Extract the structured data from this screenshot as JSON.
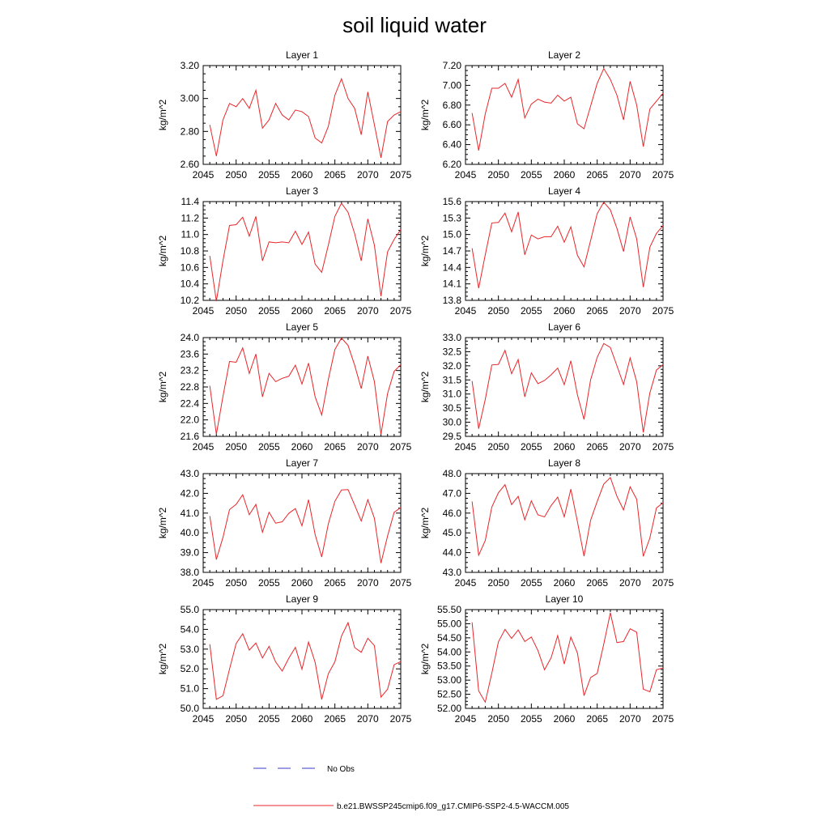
{
  "figure": {
    "title": "soil liquid water"
  },
  "legend": {
    "entries": [
      {
        "label": "No Obs",
        "color": "#3b3bc4",
        "style": "dashed"
      },
      {
        "label": "b.e21.BWSSP245cmip6.f09_g17.CMIP6-SSP2-4.5-WACCM.005",
        "color": "#e8262a",
        "style": "solid"
      }
    ]
  },
  "chart_data": [
    {
      "type": "line",
      "title": "Layer 1",
      "ylabel": "kg/m^2",
      "xlim": [
        2045,
        2075
      ],
      "ylim": [
        2.6,
        3.2
      ],
      "xticks": [
        2045,
        2050,
        2055,
        2060,
        2065,
        2070,
        2075
      ],
      "yticks": [
        "2.60",
        "2.80",
        "3.00",
        "3.20"
      ],
      "x": [
        2046,
        2047,
        2048,
        2049,
        2050,
        2051,
        2052,
        2053,
        2054,
        2055,
        2056,
        2057,
        2058,
        2059,
        2060,
        2061,
        2062,
        2063,
        2064,
        2065,
        2066,
        2067,
        2068,
        2069,
        2070,
        2071,
        2072,
        2073,
        2074,
        2075
      ],
      "series": [
        {
          "color": "#e8262a",
          "values": [
            2.84,
            2.65,
            2.87,
            2.97,
            2.95,
            3.0,
            2.94,
            3.05,
            2.82,
            2.87,
            2.97,
            2.9,
            2.87,
            2.93,
            2.92,
            2.89,
            2.76,
            2.73,
            2.83,
            3.02,
            3.12,
            3.0,
            2.94,
            2.78,
            3.04,
            2.84,
            2.64,
            2.86,
            2.9,
            2.92
          ]
        }
      ]
    },
    {
      "type": "line",
      "title": "Layer 2",
      "ylabel": "kg/m^2",
      "xlim": [
        2045,
        2075
      ],
      "ylim": [
        6.2,
        7.2
      ],
      "xticks": [
        2045,
        2050,
        2055,
        2060,
        2065,
        2070,
        2075
      ],
      "yticks": [
        "6.20",
        "6.40",
        "6.60",
        "6.80",
        "7.00",
        "7.20"
      ],
      "x": [
        2046,
        2047,
        2048,
        2049,
        2050,
        2051,
        2052,
        2053,
        2054,
        2055,
        2056,
        2057,
        2058,
        2059,
        2060,
        2061,
        2062,
        2063,
        2064,
        2065,
        2066,
        2067,
        2068,
        2069,
        2070,
        2071,
        2072,
        2073,
        2074,
        2075
      ],
      "series": [
        {
          "color": "#e8262a",
          "values": [
            6.72,
            6.34,
            6.71,
            6.97,
            6.97,
            7.02,
            6.88,
            7.06,
            6.67,
            6.81,
            6.86,
            6.83,
            6.82,
            6.9,
            6.84,
            6.88,
            6.61,
            6.56,
            6.79,
            7.02,
            7.17,
            7.06,
            6.9,
            6.65,
            7.04,
            6.8,
            6.38,
            6.76,
            6.84,
            6.92
          ]
        }
      ]
    },
    {
      "type": "line",
      "title": "Layer 3",
      "ylabel": "kg/m^2",
      "xlim": [
        2045,
        2075
      ],
      "ylim": [
        10.2,
        11.4
      ],
      "xticks": [
        2045,
        2050,
        2055,
        2060,
        2065,
        2070,
        2075
      ],
      "yticks": [
        "10.2",
        "10.4",
        "10.6",
        "10.8",
        "11.0",
        "11.2",
        "11.4"
      ],
      "x": [
        2046,
        2047,
        2048,
        2049,
        2050,
        2051,
        2052,
        2053,
        2054,
        2055,
        2056,
        2057,
        2058,
        2059,
        2060,
        2061,
        2062,
        2063,
        2064,
        2065,
        2066,
        2067,
        2068,
        2069,
        2070,
        2071,
        2072,
        2073,
        2074,
        2075
      ],
      "series": [
        {
          "color": "#e8262a",
          "values": [
            10.74,
            10.19,
            10.68,
            11.11,
            11.12,
            11.21,
            10.98,
            11.22,
            10.68,
            10.91,
            10.9,
            10.91,
            10.9,
            11.04,
            10.88,
            11.03,
            10.64,
            10.54,
            10.87,
            11.22,
            11.38,
            11.27,
            11.01,
            10.68,
            11.19,
            10.87,
            10.25,
            10.79,
            10.94,
            11.06
          ]
        }
      ]
    },
    {
      "type": "line",
      "title": "Layer 4",
      "ylabel": "kg/m^2",
      "xlim": [
        2045,
        2075
      ],
      "ylim": [
        13.8,
        15.6
      ],
      "xticks": [
        2045,
        2050,
        2055,
        2060,
        2065,
        2070,
        2075
      ],
      "yticks": [
        "13.8",
        "14.1",
        "14.4",
        "14.7",
        "15.0",
        "15.3",
        "15.6"
      ],
      "x": [
        2046,
        2047,
        2048,
        2049,
        2050,
        2051,
        2052,
        2053,
        2054,
        2055,
        2056,
        2057,
        2058,
        2059,
        2060,
        2061,
        2062,
        2063,
        2064,
        2065,
        2066,
        2067,
        2068,
        2069,
        2070,
        2071,
        2072,
        2073,
        2074,
        2075
      ],
      "series": [
        {
          "color": "#e8262a",
          "values": [
            14.75,
            14.02,
            14.63,
            15.21,
            15.22,
            15.39,
            15.05,
            15.41,
            14.63,
            14.99,
            14.92,
            14.96,
            14.96,
            15.15,
            14.86,
            15.14,
            14.62,
            14.41,
            14.89,
            15.38,
            15.59,
            15.45,
            15.11,
            14.69,
            15.32,
            14.92,
            14.04,
            14.77,
            15.02,
            15.16
          ]
        }
      ]
    },
    {
      "type": "line",
      "title": "Layer 5",
      "ylabel": "kg/m^2",
      "xlim": [
        2045,
        2075
      ],
      "ylim": [
        21.6,
        24.0
      ],
      "xticks": [
        2045,
        2050,
        2055,
        2060,
        2065,
        2070,
        2075
      ],
      "yticks": [
        "21.6",
        "22.0",
        "22.4",
        "22.8",
        "23.2",
        "23.6",
        "24.0"
      ],
      "x": [
        2046,
        2047,
        2048,
        2049,
        2050,
        2051,
        2052,
        2053,
        2054,
        2055,
        2056,
        2057,
        2058,
        2059,
        2060,
        2061,
        2062,
        2063,
        2064,
        2065,
        2066,
        2067,
        2068,
        2069,
        2070,
        2071,
        2072,
        2073,
        2074,
        2075
      ],
      "series": [
        {
          "color": "#e8262a",
          "values": [
            22.83,
            21.65,
            22.57,
            23.42,
            23.4,
            23.75,
            23.13,
            23.6,
            22.56,
            23.13,
            22.93,
            23.01,
            23.06,
            23.33,
            22.87,
            23.38,
            22.56,
            22.12,
            22.98,
            23.71,
            23.99,
            23.81,
            23.33,
            22.76,
            23.55,
            22.93,
            21.65,
            22.64,
            23.18,
            23.34
          ]
        }
      ]
    },
    {
      "type": "line",
      "title": "Layer 6",
      "ylabel": "kg/m^2",
      "xlim": [
        2045,
        2075
      ],
      "ylim": [
        29.5,
        33.0
      ],
      "xticks": [
        2045,
        2050,
        2055,
        2060,
        2065,
        2070,
        2075
      ],
      "yticks": [
        "29.5",
        "30.0",
        "30.5",
        "31.0",
        "31.5",
        "32.0",
        "32.5",
        "33.0"
      ],
      "x": [
        2046,
        2047,
        2048,
        2049,
        2050,
        2051,
        2052,
        2053,
        2054,
        2055,
        2056,
        2057,
        2058,
        2059,
        2060,
        2061,
        2062,
        2063,
        2064,
        2065,
        2066,
        2067,
        2068,
        2069,
        2070,
        2071,
        2072,
        2073,
        2074,
        2075
      ],
      "series": [
        {
          "color": "#e8262a",
          "values": [
            31.46,
            29.77,
            30.81,
            32.03,
            32.05,
            32.55,
            31.72,
            32.22,
            30.9,
            31.75,
            31.37,
            31.48,
            31.68,
            31.92,
            31.33,
            32.18,
            30.97,
            30.1,
            31.5,
            32.3,
            32.79,
            32.65,
            32.0,
            31.34,
            32.28,
            31.43,
            29.64,
            31.04,
            31.85,
            32.04
          ]
        }
      ]
    },
    {
      "type": "line",
      "title": "Layer 7",
      "ylabel": "kg/m^2",
      "xlim": [
        2045,
        2075
      ],
      "ylim": [
        38.0,
        43.0
      ],
      "xticks": [
        2045,
        2050,
        2055,
        2060,
        2065,
        2070,
        2075
      ],
      "yticks": [
        "38.0",
        "39.0",
        "40.0",
        "41.0",
        "42.0",
        "43.0"
      ],
      "x": [
        2046,
        2047,
        2048,
        2049,
        2050,
        2051,
        2052,
        2053,
        2054,
        2055,
        2056,
        2057,
        2058,
        2059,
        2060,
        2061,
        2062,
        2063,
        2064,
        2065,
        2066,
        2067,
        2068,
        2069,
        2070,
        2071,
        2072,
        2073,
        2074,
        2075
      ],
      "series": [
        {
          "color": "#e8262a",
          "values": [
            40.85,
            38.65,
            39.77,
            41.18,
            41.44,
            41.93,
            40.92,
            41.44,
            40.03,
            41.04,
            40.49,
            40.56,
            40.99,
            41.23,
            40.36,
            41.68,
            39.91,
            38.78,
            40.45,
            41.6,
            42.17,
            42.19,
            41.41,
            40.6,
            41.68,
            40.74,
            38.47,
            39.84,
            41.04,
            41.28
          ]
        }
      ]
    },
    {
      "type": "line",
      "title": "Layer 8",
      "ylabel": "kg/m^2",
      "xlim": [
        2045,
        2075
      ],
      "ylim": [
        43.0,
        48.0
      ],
      "xticks": [
        2045,
        2050,
        2055,
        2060,
        2065,
        2070,
        2075
      ],
      "yticks": [
        "43.0",
        "44.0",
        "45.0",
        "46.0",
        "47.0",
        "48.0"
      ],
      "x": [
        2046,
        2047,
        2048,
        2049,
        2050,
        2051,
        2052,
        2053,
        2054,
        2055,
        2056,
        2057,
        2058,
        2059,
        2060,
        2061,
        2062,
        2063,
        2064,
        2065,
        2066,
        2067,
        2068,
        2069,
        2070,
        2071,
        2072,
        2073,
        2074,
        2075
      ],
      "series": [
        {
          "color": "#e8262a",
          "values": [
            46.59,
            43.87,
            44.61,
            46.31,
            47.03,
            47.44,
            46.43,
            46.85,
            45.66,
            46.62,
            45.91,
            45.81,
            46.38,
            46.81,
            45.81,
            47.21,
            45.56,
            43.82,
            45.64,
            46.59,
            47.47,
            47.8,
            46.85,
            46.16,
            47.33,
            46.7,
            43.81,
            44.74,
            46.26,
            46.52
          ]
        }
      ]
    },
    {
      "type": "line",
      "title": "Layer 9",
      "ylabel": "kg/m^2",
      "xlim": [
        2045,
        2075
      ],
      "ylim": [
        50.0,
        55.0
      ],
      "xticks": [
        2045,
        2050,
        2055,
        2060,
        2065,
        2070,
        2075
      ],
      "yticks": [
        "50.0",
        "51.0",
        "52.0",
        "53.0",
        "54.0",
        "55.0"
      ],
      "x": [
        2046,
        2047,
        2048,
        2049,
        2050,
        2051,
        2052,
        2053,
        2054,
        2055,
        2056,
        2057,
        2058,
        2059,
        2060,
        2061,
        2062,
        2063,
        2064,
        2065,
        2066,
        2067,
        2068,
        2069,
        2070,
        2071,
        2072,
        2073,
        2074,
        2075
      ],
      "series": [
        {
          "color": "#e8262a",
          "values": [
            53.25,
            50.46,
            50.64,
            51.99,
            53.28,
            53.78,
            52.95,
            53.31,
            52.55,
            53.14,
            52.35,
            51.89,
            52.54,
            53.09,
            51.98,
            53.36,
            52.33,
            50.45,
            51.75,
            52.36,
            53.66,
            54.34,
            53.08,
            52.84,
            53.55,
            53.18,
            50.57,
            50.97,
            52.21,
            52.37
          ]
        }
      ]
    },
    {
      "type": "line",
      "title": "Layer 10",
      "ylabel": "kg/m^2",
      "xlim": [
        2045,
        2075
      ],
      "ylim": [
        52.0,
        55.5
      ],
      "xticks": [
        2045,
        2050,
        2055,
        2060,
        2065,
        2070,
        2075
      ],
      "yticks": [
        "52.00",
        "52.50",
        "53.00",
        "53.50",
        "54.00",
        "54.50",
        "55.00",
        "55.50"
      ],
      "x": [
        2046,
        2047,
        2048,
        2049,
        2050,
        2051,
        2052,
        2053,
        2054,
        2055,
        2056,
        2057,
        2058,
        2059,
        2060,
        2061,
        2062,
        2063,
        2064,
        2065,
        2066,
        2067,
        2068,
        2069,
        2070,
        2071,
        2072,
        2073,
        2074,
        2075
      ],
      "series": [
        {
          "color": "#e8262a",
          "values": [
            55.05,
            52.62,
            52.22,
            53.25,
            54.36,
            54.8,
            54.48,
            54.78,
            54.37,
            54.53,
            54.05,
            53.37,
            53.79,
            54.58,
            53.57,
            54.53,
            53.96,
            52.45,
            53.09,
            53.24,
            54.28,
            55.39,
            54.33,
            54.37,
            54.82,
            54.7,
            52.68,
            52.59,
            53.37,
            53.43
          ]
        }
      ]
    }
  ]
}
